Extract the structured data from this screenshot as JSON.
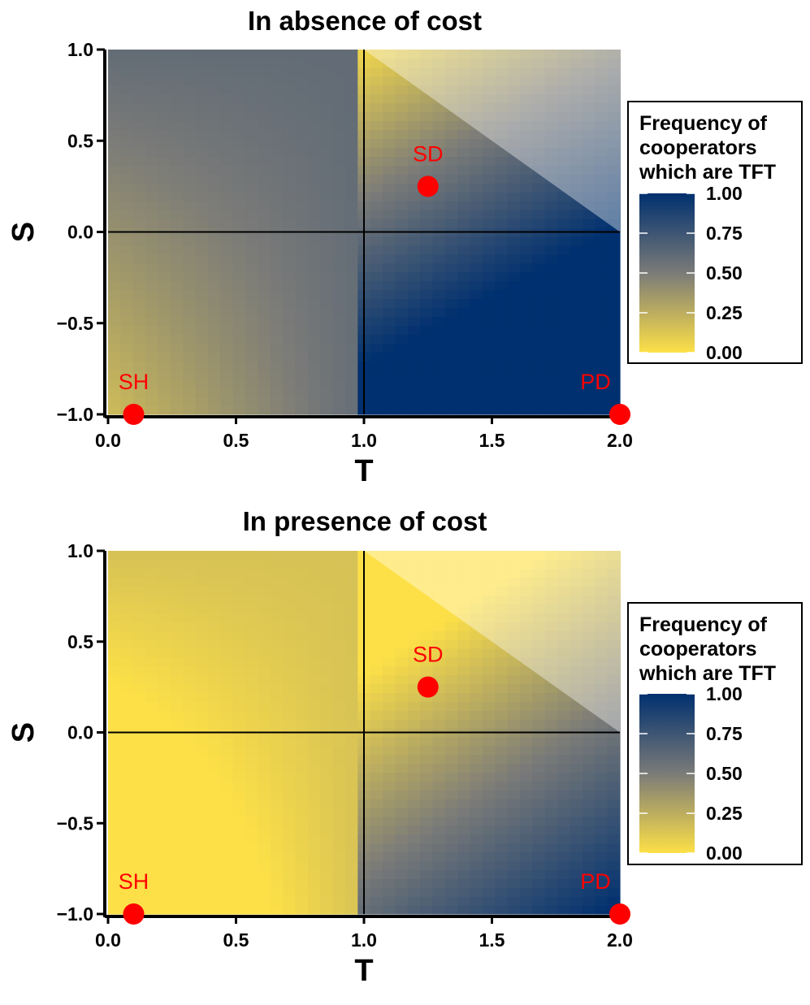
{
  "chart_data": [
    {
      "type": "heatmap",
      "title": "In absence of cost",
      "xlabel": "T",
      "ylabel": "S",
      "xlim": [
        0.0,
        2.0
      ],
      "ylim": [
        -1.0,
        1.0
      ],
      "xticks": [
        "0.0",
        "0.5",
        "1.0",
        "1.5",
        "2.0"
      ],
      "yticks": [
        "-1.0",
        "-0.5",
        "0.0",
        "0.5",
        "1.0"
      ],
      "value_model": {
        "base": 0.6,
        "slope_T": 0.42,
        "slope_S": -0.55,
        "lower_knee_T": 1.0
      },
      "masked_region": "S > 1 - T/2 and T > 1 (shown greyed out)",
      "reference_lines": {
        "x": 1.0,
        "y": 0.0
      },
      "points": [
        {
          "label": "SH",
          "T": 0.1,
          "S": -1.0
        },
        {
          "label": "SD",
          "T": 1.25,
          "S": 0.25
        },
        {
          "label": "PD",
          "T": 2.0,
          "S": -1.0
        }
      ],
      "legend": {
        "title": [
          "Frequency of",
          "cooperators",
          "which are TFT"
        ],
        "ticks": [
          "1.00",
          "0.75",
          "0.50",
          "0.25",
          "0.00"
        ],
        "colors": [
          "#fde047",
          "#7b7b78",
          "#00306f"
        ],
        "placement": "right"
      }
    },
    {
      "type": "heatmap",
      "title": "In presence of cost",
      "xlabel": "T",
      "ylabel": "S",
      "xlim": [
        0.0,
        2.0
      ],
      "ylim": [
        -1.0,
        1.0
      ],
      "xticks": [
        "0.0",
        "0.5",
        "1.0",
        "1.5",
        "2.0"
      ],
      "yticks": [
        "-1.0",
        "-0.5",
        "0.0",
        "0.5",
        "1.0"
      ],
      "value_model": {
        "base": 0.15,
        "slope_T": 0.42,
        "slope_S": -0.45,
        "lower_knee_T": 1.0
      },
      "masked_region": "S > 1 - T/2 and T > 1 (shown greyed out)",
      "reference_lines": {
        "x": 1.0,
        "y": 0.0
      },
      "points": [
        {
          "label": "SH",
          "T": 0.1,
          "S": -1.0
        },
        {
          "label": "SD",
          "T": 1.25,
          "S": 0.25
        },
        {
          "label": "PD",
          "T": 2.0,
          "S": -1.0
        }
      ],
      "legend": {
        "title": [
          "Frequency of",
          "cooperators",
          "which are TFT"
        ],
        "ticks": [
          "1.00",
          "0.75",
          "0.50",
          "0.25",
          "0.00"
        ],
        "colors": [
          "#fde047",
          "#7b7b78",
          "#00306f"
        ],
        "placement": "right"
      }
    }
  ]
}
